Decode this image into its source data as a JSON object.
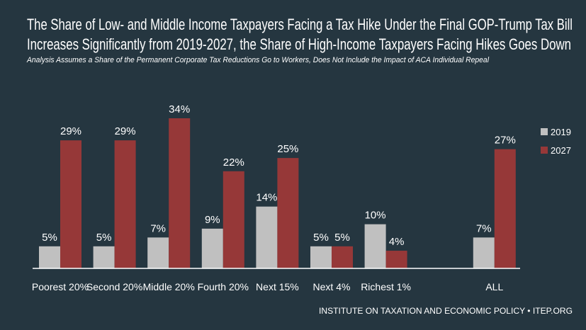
{
  "title_line1": "The Share of Low- and Middle Income Taxpayers Facing a Tax Hike Under the Final GOP-Trump Tax Bill",
  "title_line2": "Increases Significantly from 2019-2027, the Share of High-Income Taxpayers Facing Hikes Goes Down",
  "subtitle": "Analysis Assumes a Share of the Permanent Corporate Tax Reductions Go to Workers, Does Not Include the Impact of ACA Individual Repeal",
  "footer": "INSTITUTE ON TAXATION AND ECONOMIC POLICY • ITEP.ORG",
  "chart_data": {
    "type": "bar",
    "title": "The Share of Low- and Middle Income Taxpayers Facing a Tax Hike Under the Final GOP-Trump Tax Bill Increases Significantly from 2019-2027, the Share of High-Income Taxpayers Facing Hikes Goes Down",
    "subtitle": "Analysis Assumes a Share of the Permanent Corporate Tax Reductions Go to Workers, Does Not Include the Impact of ACA Individual Repeal",
    "categories": [
      "Poorest 20%",
      "Second 20%",
      "Middle 20%",
      "Fourth 20%",
      "Next 15%",
      "Next 4%",
      "Richest 1%",
      "ALL"
    ],
    "series": [
      {
        "name": "2019",
        "color": "#c0c0c0",
        "values": [
          5,
          5,
          7,
          9,
          14,
          5,
          10,
          7
        ],
        "labels": [
          "5%",
          "5%",
          "7%",
          "9%",
          "14%",
          "5%",
          "10%",
          "7%"
        ]
      },
      {
        "name": "2027",
        "color": "#963838",
        "values": [
          29,
          29,
          34,
          22,
          25,
          5,
          4,
          27
        ],
        "labels": [
          "29%",
          "29%",
          "34%",
          "22%",
          "25%",
          "5%",
          "4%",
          "27%"
        ]
      }
    ],
    "xlabel": "",
    "ylabel": "",
    "ylim": [
      0,
      34
    ],
    "unit": "%",
    "grid": false,
    "legend": "right",
    "background": "#253640"
  }
}
